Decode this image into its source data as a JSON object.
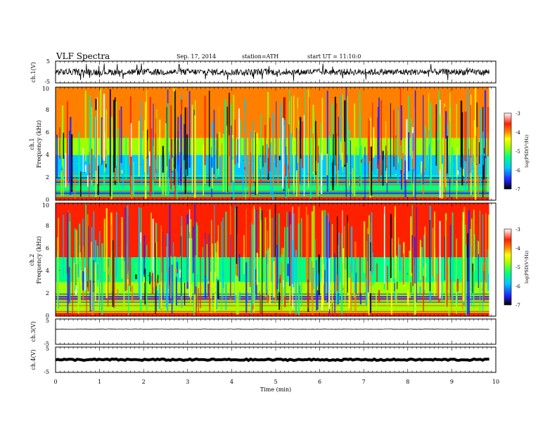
{
  "header": {
    "title": "VLF  Spectra",
    "date": "Sep. 17, 2014",
    "station": "station=ATH",
    "start": "start  UT  =   11:10:0"
  },
  "chart_data": [
    {
      "type": "line",
      "panel": "ch1-waveform",
      "ylabel": "ch.1(V)",
      "ylim": [
        -5,
        5
      ],
      "yticks": [
        "5",
        "-5"
      ],
      "baseline": 0,
      "amplitude": 1.5
    },
    {
      "type": "heatmap",
      "panel": "ch1-spectrogram",
      "ylabel": [
        "ch.1",
        "Frequency  (kHz)"
      ],
      "ylim": [
        0,
        10
      ],
      "yticks": [
        "0",
        "2",
        "4",
        "6",
        "8",
        "10"
      ],
      "bands": [
        {
          "from": 10,
          "to": 5.5,
          "level": -3.6
        },
        {
          "from": 5.5,
          "to": 4.0,
          "level": -4.6
        },
        {
          "from": 4.0,
          "to": 2.2,
          "level": -5.6
        },
        {
          "from": 2.2,
          "to": 0.3,
          "level": -5.2
        }
      ],
      "colorbar": {
        "label": "log(PSD(V²/Hz)",
        "ticks": [
          "-3",
          "-4",
          "-5",
          "-6",
          "-7"
        ],
        "range": [
          -7,
          -3
        ]
      }
    },
    {
      "type": "heatmap",
      "panel": "ch2-spectrogram",
      "ylabel": [
        "ch.2",
        "Frequency  (kHz)"
      ],
      "ylim": [
        0,
        10
      ],
      "yticks": [
        "0",
        "2",
        "4",
        "6",
        "8",
        "10"
      ],
      "bands": [
        {
          "from": 10,
          "to": 5.2,
          "level": -3.9
        },
        {
          "from": 5.2,
          "to": 3.0,
          "level": -5.3
        },
        {
          "from": 3.0,
          "to": 0.3,
          "level": -5.0
        }
      ],
      "colorbar": {
        "label": "log(PSD(V²/Hz)",
        "ticks": [
          "-3",
          "-4",
          "-5",
          "-6",
          "-7"
        ],
        "range": [
          -7,
          -3
        ]
      }
    },
    {
      "type": "line",
      "panel": "ch3-waveform",
      "ylabel": "ch.3(V)",
      "ylim": [
        -5,
        5
      ],
      "yticks": [
        "5",
        "-5"
      ],
      "baseline": 1,
      "amplitude": 0.1
    },
    {
      "type": "line",
      "panel": "ch4-waveform",
      "ylabel": "ch.4(V)",
      "ylim": [
        -5,
        5
      ],
      "yticks": [
        "5",
        "-5"
      ],
      "baseline": 0,
      "amplitude": 0.3
    }
  ],
  "xaxis": {
    "label": "Time  (min)",
    "xlim": [
      0,
      10
    ],
    "data_end": 9.85,
    "ticks": [
      "0",
      "1",
      "2",
      "3",
      "4",
      "5",
      "6",
      "7",
      "8",
      "9",
      "10"
    ]
  },
  "colors": {
    "scale": [
      "#000000",
      "#2020ff",
      "#00c8ff",
      "#00ff80",
      "#a0ff00",
      "#ffff00",
      "#ff8000",
      "#ff2000",
      "#ffffff"
    ]
  }
}
